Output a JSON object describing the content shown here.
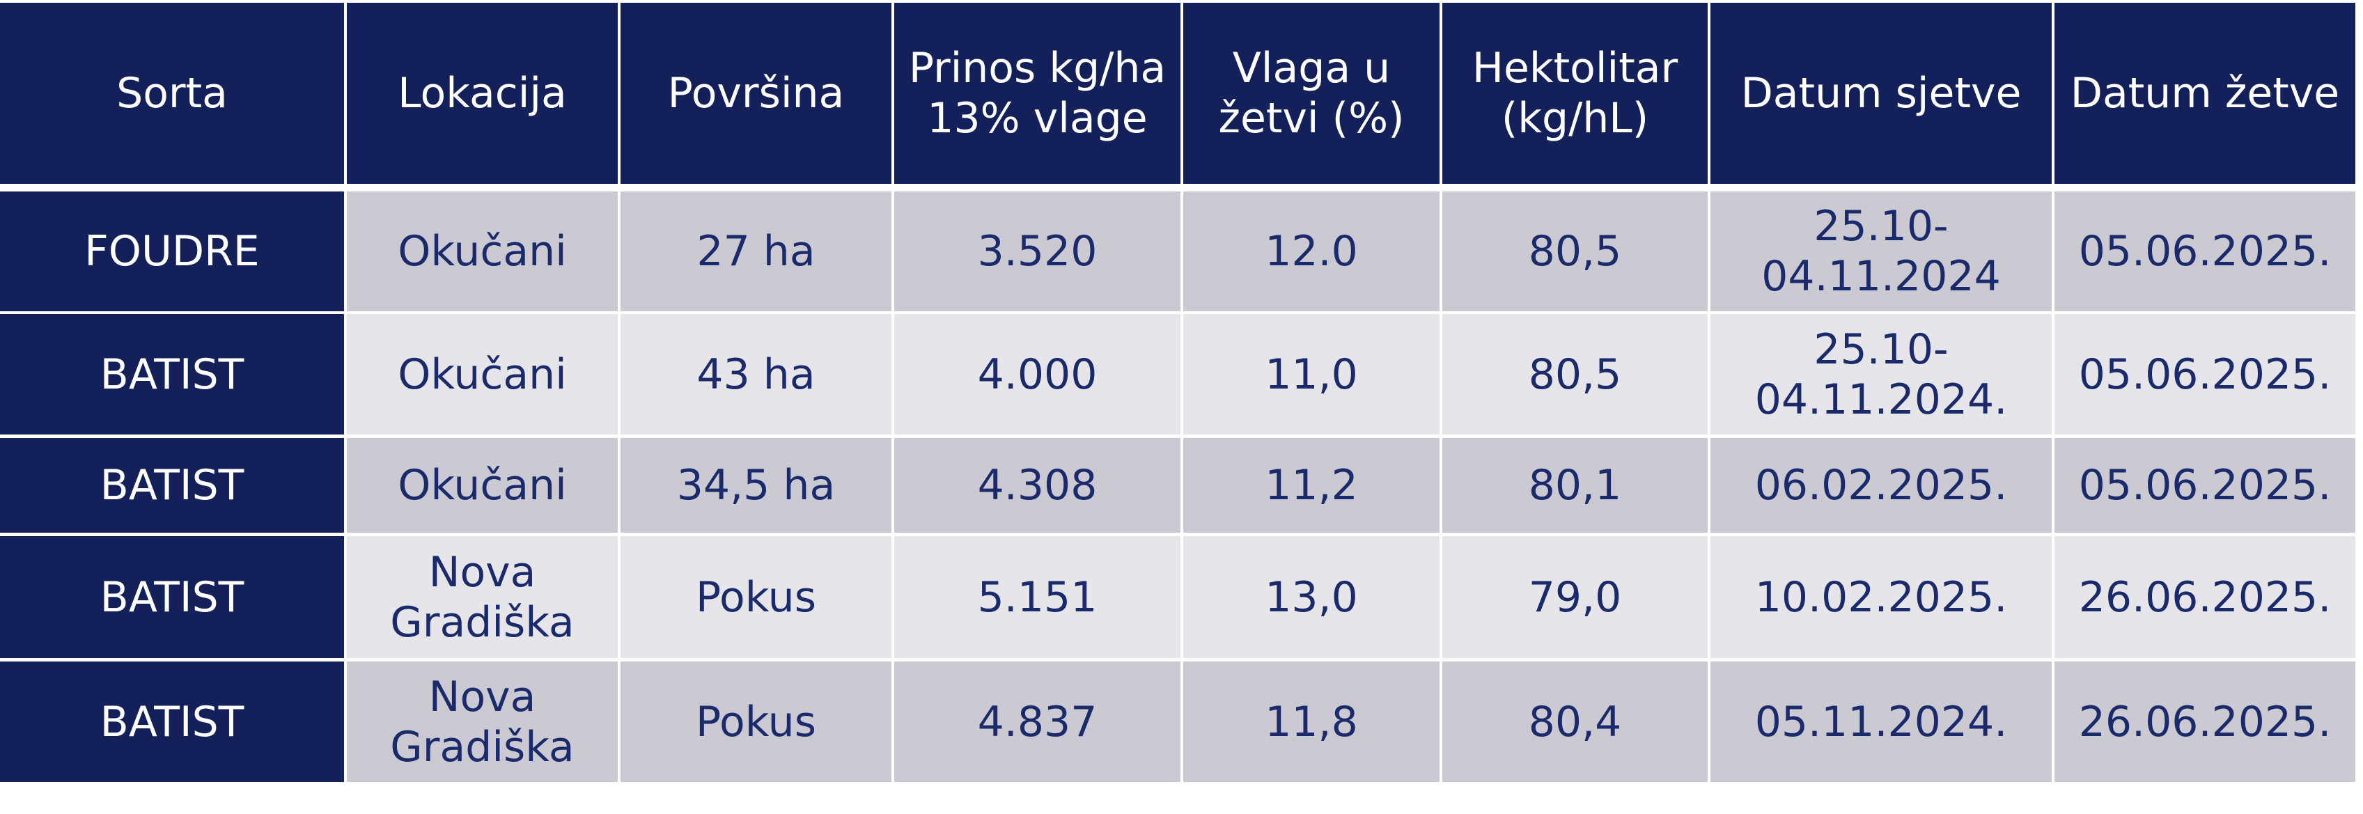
{
  "table": {
    "header": [
      "Sorta",
      "Lokacija",
      "Površina",
      "Prinos kg/ha\n13% vlage",
      "Vlaga u\nžetvi (%)",
      "Hektolitar\n(kg/hL)",
      "Datum sjetve",
      "Datum žetve"
    ],
    "rows": [
      [
        "FOUDRE",
        "Okučani",
        "27 ha",
        "3.520",
        "12.0",
        "80,5",
        "25.10-\n04.11.2024",
        "05.06.2025."
      ],
      [
        "BATIST",
        "Okučani",
        "43 ha",
        "4.000",
        "11,0",
        "80,5",
        "25.10-\n04.11.2024.",
        "05.06.2025."
      ],
      [
        "BATIST",
        "Okučani",
        "34,5 ha",
        "4.308",
        "11,2",
        "80,1",
        "06.02.2025.",
        "05.06.2025."
      ],
      [
        "BATIST",
        "Nova\nGradiška",
        "Pokus",
        "5.151",
        "13,0",
        "79,0",
        "10.02.2025.",
        "26.06.2025."
      ],
      [
        "BATIST",
        "Nova\nGradiška",
        "Pokus",
        "4.837",
        "11,8",
        "80,4",
        "05.11.2024.",
        "26.06.2025."
      ]
    ]
  }
}
